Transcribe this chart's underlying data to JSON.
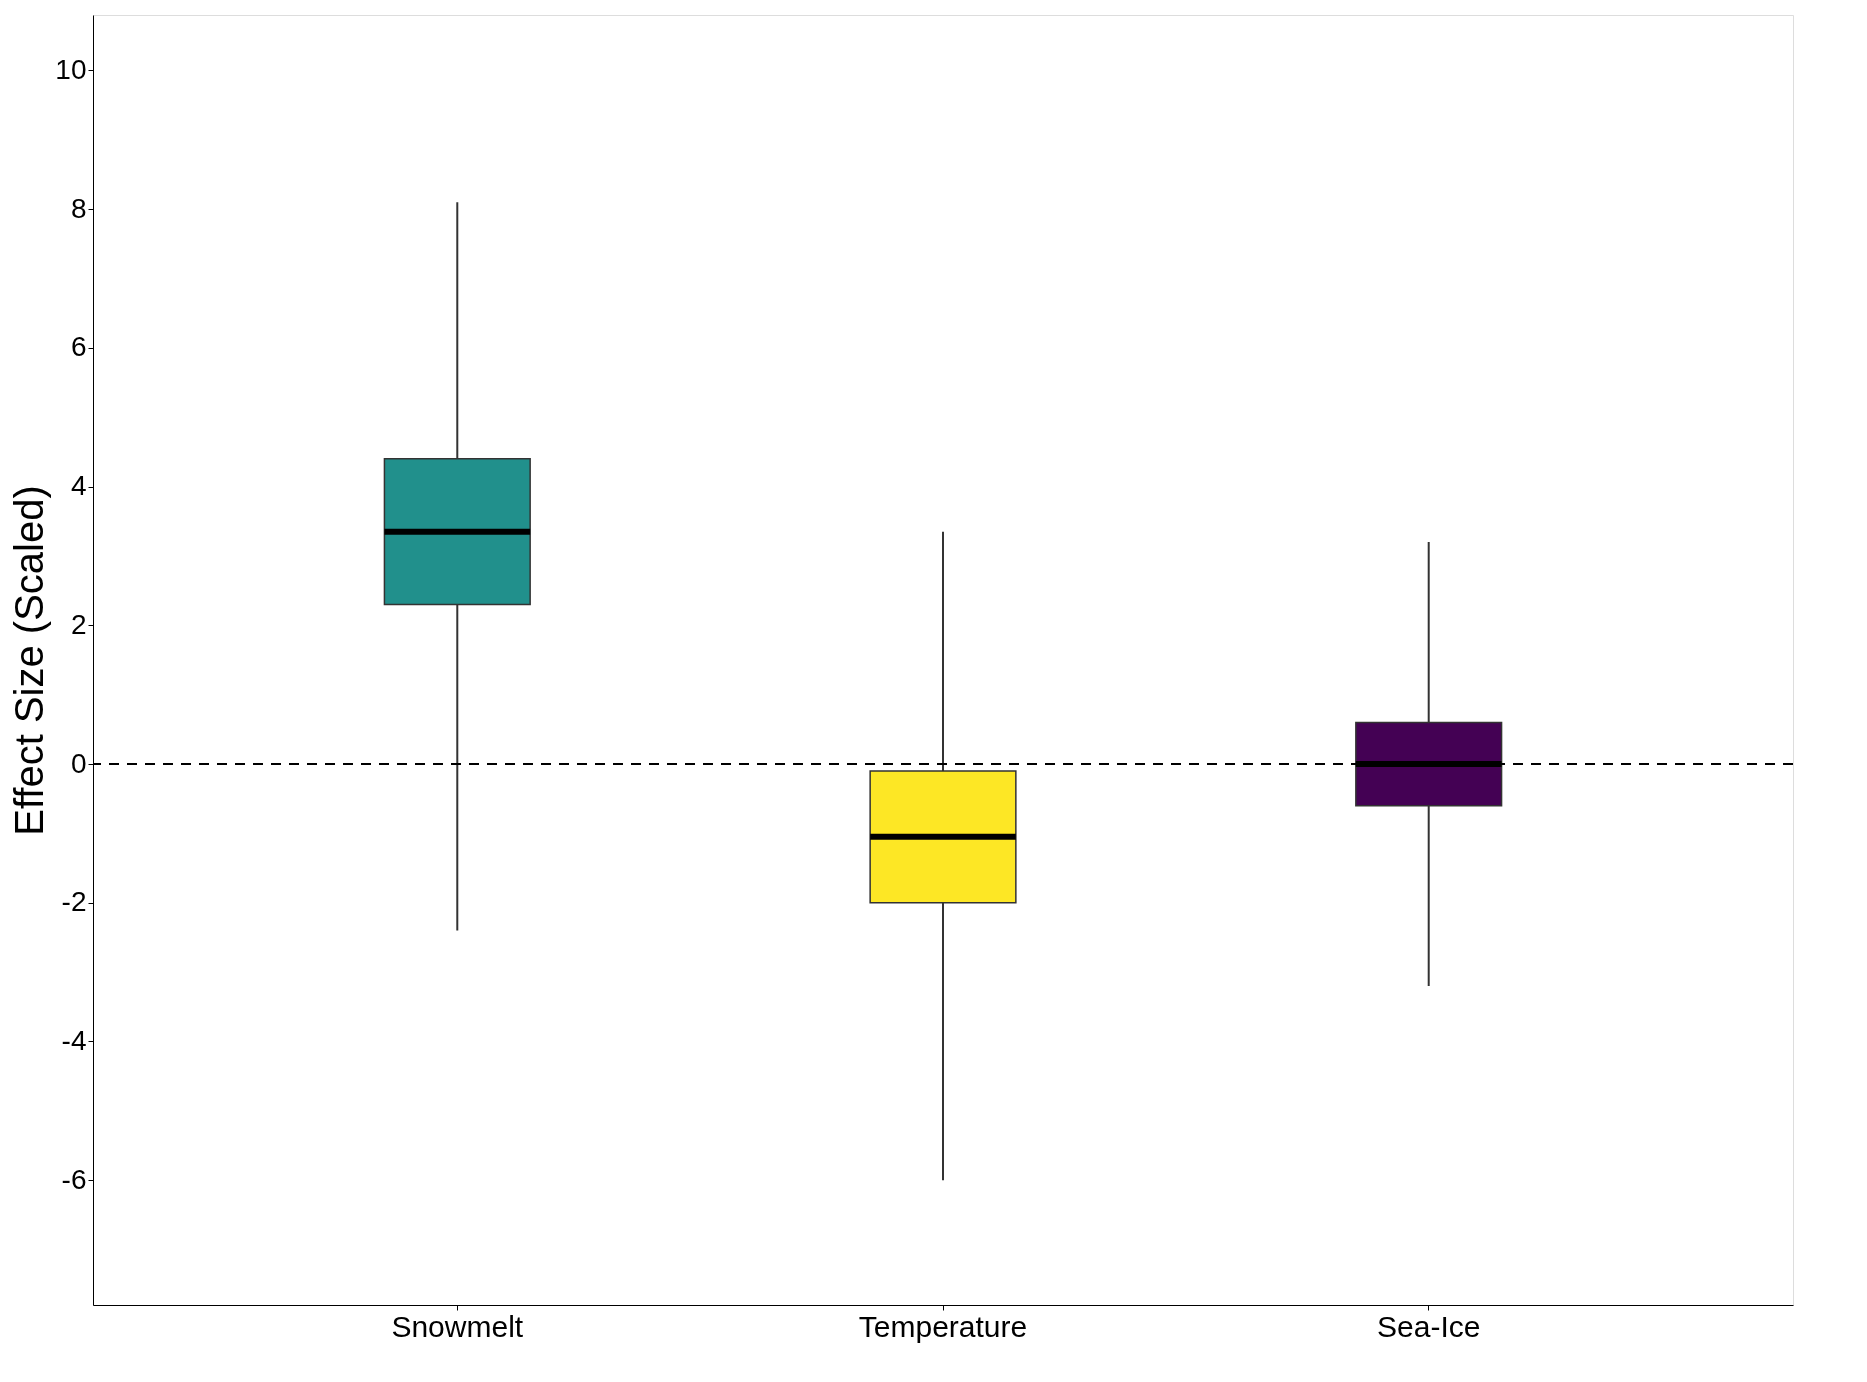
{
  "chart_data": {
    "type": "box",
    "ylabel": "Effect Size (Scaled)",
    "categories": [
      "Snowmelt",
      "Temperature",
      "Sea-Ice"
    ],
    "colors": [
      "#21908c",
      "#fde725",
      "#440154"
    ],
    "boxes": [
      {
        "low": -2.4,
        "q1": 2.3,
        "median": 3.35,
        "q3": 4.4,
        "high": 8.1
      },
      {
        "low": -6.0,
        "q1": -2.0,
        "median": -1.05,
        "q3": -0.1,
        "high": 3.35
      },
      {
        "low": -3.2,
        "q1": -0.6,
        "median": 0.0,
        "q3": 0.6,
        "high": 3.2
      }
    ],
    "ylim": [
      -7.8,
      10.8
    ],
    "yticks": [
      -6,
      -4,
      -2,
      0,
      2,
      4,
      6,
      8,
      10
    ],
    "ref_lines": [
      {
        "axis": "y",
        "value": 0,
        "line_style": "dashed",
        "color": "#000000"
      }
    ],
    "grid": false,
    "legend": false
  }
}
